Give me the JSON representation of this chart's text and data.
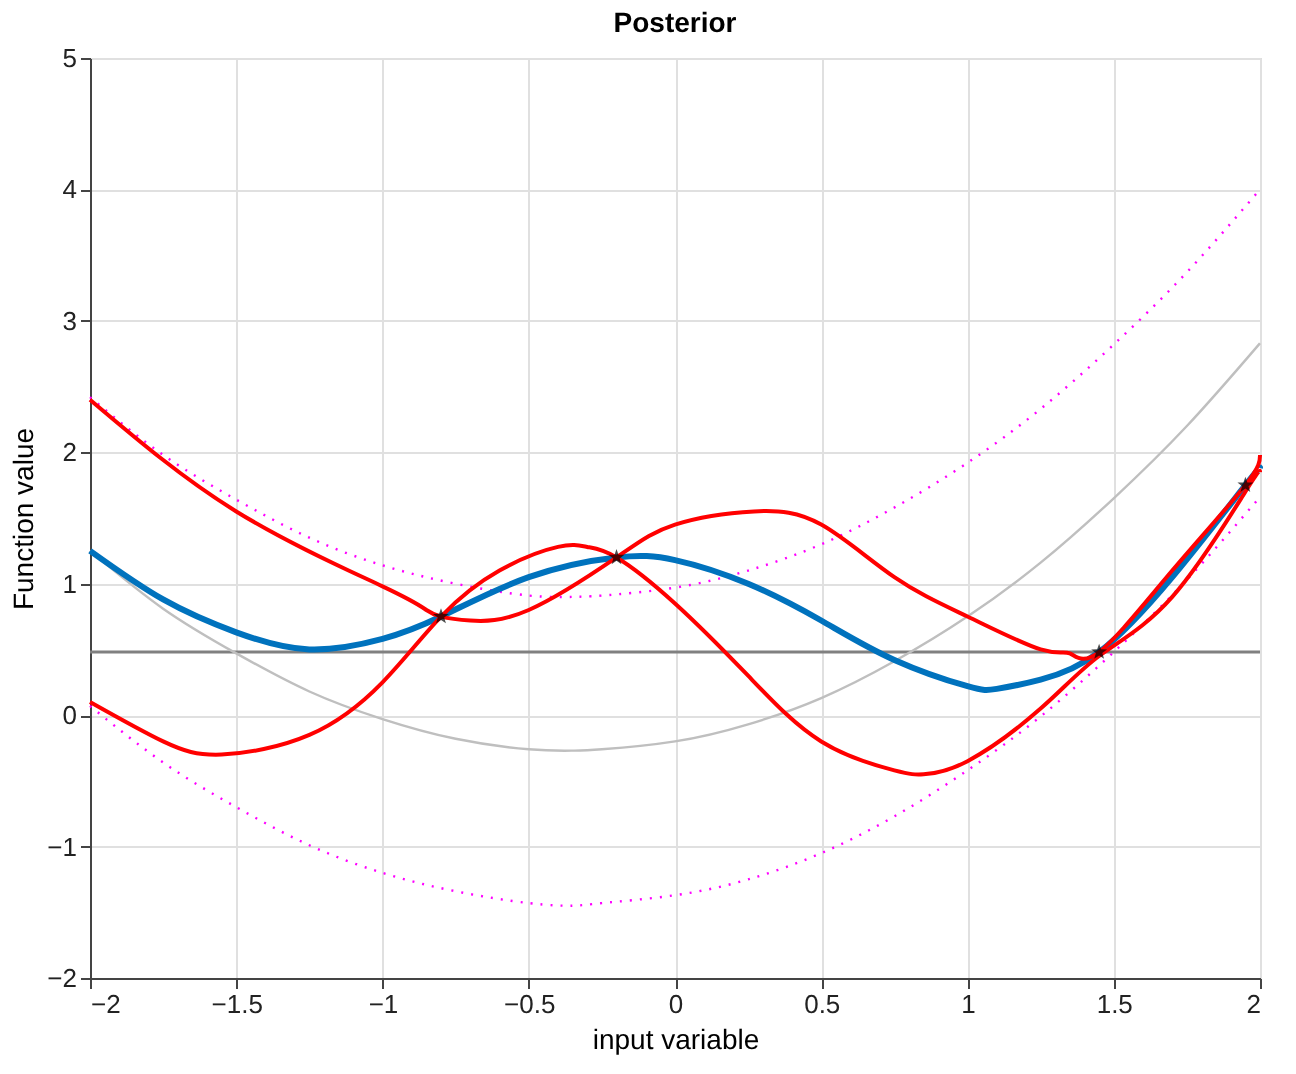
{
  "chart_data": {
    "type": "line",
    "title": "Posterior",
    "xlabel": "input variable",
    "ylabel": "Function value",
    "xlim": [
      -2,
      2
    ],
    "ylim": [
      -2,
      5
    ],
    "xticks": [
      -2,
      -1.5,
      -1,
      -0.5,
      0,
      0.5,
      1,
      1.5,
      2
    ],
    "yticks": [
      -2,
      -1,
      0,
      1,
      2,
      3,
      4,
      5
    ],
    "grid": true,
    "marker": "none",
    "ref_lines": [
      {
        "axis": "y",
        "value": 0.48,
        "color": "#808080"
      }
    ],
    "series": [
      {
        "color": "#bfbfbf",
        "line_style": "solid",
        "x": [
          -2,
          -1.75,
          -1.5,
          -1.25,
          -1,
          -0.75,
          -0.5,
          -0.35,
          -0.25,
          0,
          0.25,
          0.5,
          0.75,
          1,
          1.25,
          1.5,
          1.75,
          2
        ],
        "values": [
          1.25,
          0.81,
          0.47,
          0.18,
          -0.03,
          -0.18,
          -0.26,
          -0.27,
          -0.26,
          -0.2,
          -0.07,
          0.13,
          0.41,
          0.75,
          1.16,
          1.65,
          2.2,
          2.83
        ]
      },
      {
        "color": "#ff00ff",
        "line_style": "dotted",
        "x": [
          -2,
          -1.75,
          -1.5,
          -1.25,
          -1,
          -0.75,
          -0.5,
          -0.35,
          -0.25,
          0,
          0.25,
          0.5,
          0.75,
          1,
          1.25,
          1.5,
          1.75,
          2
        ],
        "values": [
          2.42,
          1.98,
          1.64,
          1.35,
          1.14,
          1.0,
          0.91,
          0.9,
          0.91,
          0.97,
          1.1,
          1.3,
          1.58,
          1.92,
          2.33,
          2.82,
          3.37,
          4.0
        ]
      },
      {
        "color": "#ff00ff",
        "line_style": "dotted",
        "x": [
          -2,
          -1.75,
          -1.5,
          -1.25,
          -1,
          -0.75,
          -0.5,
          -0.35,
          -0.25,
          0,
          0.25,
          0.5,
          0.75,
          1,
          1.25,
          1.5,
          1.75,
          2
        ],
        "values": [
          0.07,
          -0.36,
          -0.7,
          -0.99,
          -1.2,
          -1.34,
          -1.43,
          -1.45,
          -1.43,
          -1.37,
          -1.25,
          -1.05,
          -0.77,
          -0.42,
          -0.01,
          0.48,
          1.03,
          1.66
        ]
      },
      {
        "color": "#0072bd",
        "line_style": "solid",
        "x": [
          -2,
          -1.75,
          -1.5,
          -1.25,
          -1,
          -0.8,
          -0.5,
          -0.2,
          0,
          0.25,
          0.5,
          0.75,
          1,
          1.1,
          1.25,
          1.45,
          1.7,
          1.95,
          2
        ],
        "values": [
          1.25,
          0.88,
          0.63,
          0.5,
          0.58,
          0.75,
          1.05,
          1.2,
          1.18,
          1.0,
          0.72,
          0.42,
          0.22,
          0.2,
          0.27,
          0.48,
          1.05,
          1.75,
          1.88
        ]
      },
      {
        "color": "#ff0000",
        "line_style": "solid",
        "x": [
          -2,
          -1.5,
          -1,
          -0.85,
          -0.8,
          -0.7,
          -0.5,
          -0.2,
          0,
          0.27,
          0.5,
          0.75,
          1,
          1.25,
          1.35,
          1.45,
          1.7,
          1.95,
          2
        ],
        "values": [
          2.4,
          1.55,
          0.98,
          0.8,
          0.75,
          0.72,
          0.8,
          1.2,
          1.45,
          1.55,
          1.45,
          1.05,
          0.75,
          0.5,
          0.47,
          0.48,
          1.1,
          1.75,
          1.98
        ]
      },
      {
        "color": "#ff0000",
        "line_style": "solid",
        "x": [
          -2,
          -1.75,
          -1.55,
          -1.25,
          -1,
          -0.8,
          -0.6,
          -0.4,
          -0.3,
          -0.2,
          0,
          0.25,
          0.5,
          0.75,
          0.85,
          1,
          1.25,
          1.45,
          1.7,
          1.95,
          2
        ],
        "values": [
          0.1,
          -0.2,
          -0.3,
          -0.15,
          0.25,
          0.75,
          1.1,
          1.28,
          1.28,
          1.2,
          0.85,
          0.3,
          -0.2,
          -0.42,
          -0.45,
          -0.35,
          0.05,
          0.45,
          0.9,
          1.7,
          1.85
        ]
      },
      {
        "type": "scatter",
        "color": "#000000",
        "marker": "star",
        "x": [
          -0.8,
          -0.2,
          1.45,
          1.95
        ],
        "values": [
          0.75,
          1.2,
          0.48,
          1.75
        ]
      }
    ]
  }
}
